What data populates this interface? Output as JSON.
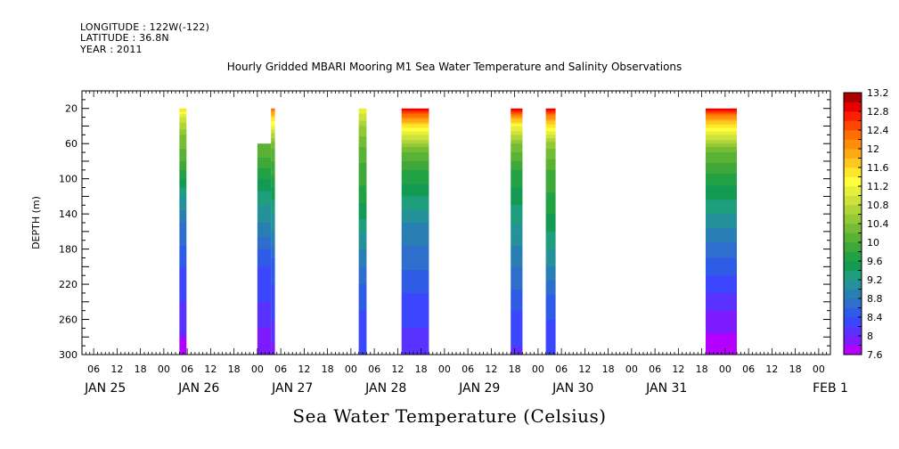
{
  "meta": {
    "longitude": "LONGITUDE : 122W(-122)",
    "latitude": "LATITUDE : 36.8N",
    "year": "YEAR : 2011"
  },
  "chart_data": {
    "type": "heatmap",
    "title": "Hourly Gridded MBARI Mooring M1 Sea Water Temperature and Salinity Observations",
    "xlabel": "",
    "ylabel": "DEPTH (m)",
    "colorbar_label": "Sea Water Temperature (Celsius)",
    "x_unit": "hours since JAN 25 00:00, 2011",
    "xlim": [
      3,
      195
    ],
    "ylim": [
      300,
      0
    ],
    "y_ticks": [
      20,
      60,
      100,
      140,
      180,
      220,
      260,
      300
    ],
    "x_hour_ticks": [
      {
        "h": 6,
        "label": "06"
      },
      {
        "h": 12,
        "label": "12"
      },
      {
        "h": 18,
        "label": "18"
      },
      {
        "h": 24,
        "label": "00"
      },
      {
        "h": 30,
        "label": "06"
      },
      {
        "h": 36,
        "label": "12"
      },
      {
        "h": 42,
        "label": "18"
      },
      {
        "h": 48,
        "label": "00"
      },
      {
        "h": 54,
        "label": "06"
      },
      {
        "h": 60,
        "label": "12"
      },
      {
        "h": 66,
        "label": "18"
      },
      {
        "h": 72,
        "label": "00"
      },
      {
        "h": 78,
        "label": "06"
      },
      {
        "h": 84,
        "label": "12"
      },
      {
        "h": 90,
        "label": "18"
      },
      {
        "h": 96,
        "label": "00"
      },
      {
        "h": 102,
        "label": "06"
      },
      {
        "h": 108,
        "label": "12"
      },
      {
        "h": 114,
        "label": "18"
      },
      {
        "h": 120,
        "label": "00"
      },
      {
        "h": 126,
        "label": "06"
      },
      {
        "h": 132,
        "label": "12"
      },
      {
        "h": 138,
        "label": "18"
      },
      {
        "h": 144,
        "label": "00"
      },
      {
        "h": 150,
        "label": "06"
      },
      {
        "h": 156,
        "label": "12"
      },
      {
        "h": 162,
        "label": "18"
      },
      {
        "h": 168,
        "label": "00"
      },
      {
        "h": 174,
        "label": "06"
      },
      {
        "h": 180,
        "label": "12"
      },
      {
        "h": 186,
        "label": "18"
      },
      {
        "h": 192,
        "label": "00"
      }
    ],
    "x_day_labels": [
      {
        "h": 9,
        "label": "JAN 25"
      },
      {
        "h": 33,
        "label": "JAN 26"
      },
      {
        "h": 57,
        "label": "JAN 27"
      },
      {
        "h": 81,
        "label": "JAN 28"
      },
      {
        "h": 105,
        "label": "JAN 29"
      },
      {
        "h": 129,
        "label": "JAN 30"
      },
      {
        "h": 153,
        "label": "JAN 31"
      },
      {
        "h": 195,
        "label": "FEB  1"
      }
    ],
    "colorbar": {
      "levels": [
        7.6,
        7.8,
        8.0,
        8.2,
        8.4,
        8.6,
        8.8,
        9.0,
        9.2,
        9.4,
        9.6,
        9.8,
        10.0,
        10.2,
        10.4,
        10.6,
        10.8,
        11.0,
        11.2,
        11.4,
        11.6,
        11.8,
        12.0,
        12.2,
        12.4,
        12.6,
        12.8,
        13.0,
        13.2
      ],
      "tick_labels": [
        "7.6",
        "8",
        "8.4",
        "8.8",
        "9.2",
        "9.6",
        "10",
        "10.4",
        "10.8",
        "11.2",
        "11.6",
        "12",
        "12.4",
        "12.8",
        "13.2"
      ],
      "colors": [
        "#b400ff",
        "#7d1aff",
        "#5a32ff",
        "#3c46ff",
        "#2e5ce6",
        "#2e6ecc",
        "#287fb4",
        "#24919b",
        "#1f9e7d",
        "#139a53",
        "#22a244",
        "#3ea83a",
        "#59b234",
        "#74bd35",
        "#92c935",
        "#b0d538",
        "#cde23a",
        "#e7ef3c",
        "#ffff3c",
        "#ffe629",
        "#ffc81e",
        "#ffaa14",
        "#ff8c0a",
        "#ff6e00",
        "#ff4600",
        "#ff1e00",
        "#e60000",
        "#aa0000"
      ]
    },
    "segments": [
      {
        "start": 28.0,
        "end": 29.8,
        "top": 20,
        "profile": [
          [
            20,
            11.6
          ],
          [
            30,
            11.0
          ],
          [
            50,
            10.4
          ],
          [
            80,
            10.0
          ],
          [
            100,
            9.6
          ],
          [
            120,
            9.2
          ],
          [
            150,
            8.8
          ],
          [
            200,
            8.4
          ],
          [
            240,
            8.2
          ],
          [
            275,
            8.0
          ],
          [
            285,
            7.7
          ],
          [
            300,
            7.6
          ]
        ]
      },
      {
        "start": 48.0,
        "end": 51.5,
        "top": 60,
        "profile": [
          [
            60,
            10.2
          ],
          [
            75,
            10.0
          ],
          [
            100,
            9.6
          ],
          [
            120,
            9.3
          ],
          [
            150,
            9.0
          ],
          [
            180,
            8.6
          ],
          [
            200,
            8.4
          ],
          [
            240,
            8.2
          ],
          [
            270,
            8.0
          ],
          [
            300,
            7.8
          ]
        ]
      },
      {
        "start": 51.5,
        "end": 52.5,
        "top": 20,
        "profile": [
          [
            20,
            12.3
          ],
          [
            30,
            11.6
          ],
          [
            60,
            10.3
          ],
          [
            80,
            10.0
          ],
          [
            110,
            9.6
          ],
          [
            130,
            9.3
          ],
          [
            160,
            9.0
          ],
          [
            190,
            8.6
          ],
          [
            220,
            8.4
          ],
          [
            260,
            8.2
          ],
          [
            285,
            8.0
          ],
          [
            300,
            7.8
          ]
        ]
      },
      {
        "start": 74.0,
        "end": 76.0,
        "top": 20,
        "profile": [
          [
            20,
            11.2
          ],
          [
            40,
            10.6
          ],
          [
            70,
            10.1
          ],
          [
            120,
            9.7
          ],
          [
            180,
            9.0
          ],
          [
            230,
            8.5
          ],
          [
            270,
            8.3
          ],
          [
            300,
            8.2
          ]
        ]
      },
      {
        "start": 85.0,
        "end": 92.0,
        "top": 20,
        "profile": [
          [
            20,
            13.0
          ],
          [
            26,
            12.4
          ],
          [
            35,
            11.8
          ],
          [
            50,
            11.0
          ],
          [
            70,
            10.2
          ],
          [
            90,
            9.8
          ],
          [
            120,
            9.4
          ],
          [
            150,
            9.0
          ],
          [
            190,
            8.7
          ],
          [
            230,
            8.4
          ],
          [
            270,
            8.2
          ],
          [
            300,
            8.0
          ]
        ]
      },
      {
        "start": 113.0,
        "end": 116.0,
        "top": 20,
        "profile": [
          [
            20,
            13.0
          ],
          [
            28,
            12.2
          ],
          [
            40,
            11.2
          ],
          [
            60,
            10.4
          ],
          [
            90,
            9.8
          ],
          [
            140,
            9.3
          ],
          [
            200,
            8.8
          ],
          [
            250,
            8.4
          ],
          [
            290,
            8.2
          ],
          [
            300,
            8.0
          ]
        ]
      },
      {
        "start": 122.0,
        "end": 124.5,
        "top": 20,
        "profile": [
          [
            20,
            13.0
          ],
          [
            28,
            12.2
          ],
          [
            40,
            11.5
          ],
          [
            60,
            10.5
          ],
          [
            90,
            10.0
          ],
          [
            140,
            9.6
          ],
          [
            200,
            9.0
          ],
          [
            240,
            8.5
          ],
          [
            280,
            8.3
          ],
          [
            300,
            8.2
          ]
        ]
      },
      {
        "start": 163.0,
        "end": 171.0,
        "top": 20,
        "profile": [
          [
            20,
            13.0
          ],
          [
            26,
            12.4
          ],
          [
            35,
            11.7
          ],
          [
            50,
            11.0
          ],
          [
            70,
            10.2
          ],
          [
            100,
            9.7
          ],
          [
            140,
            9.2
          ],
          [
            180,
            8.7
          ],
          [
            220,
            8.3
          ],
          [
            250,
            8.0
          ],
          [
            275,
            7.8
          ],
          [
            300,
            7.6
          ]
        ]
      }
    ]
  },
  "footer": {
    "title": "Sea Water Temperature (Celsius)"
  }
}
